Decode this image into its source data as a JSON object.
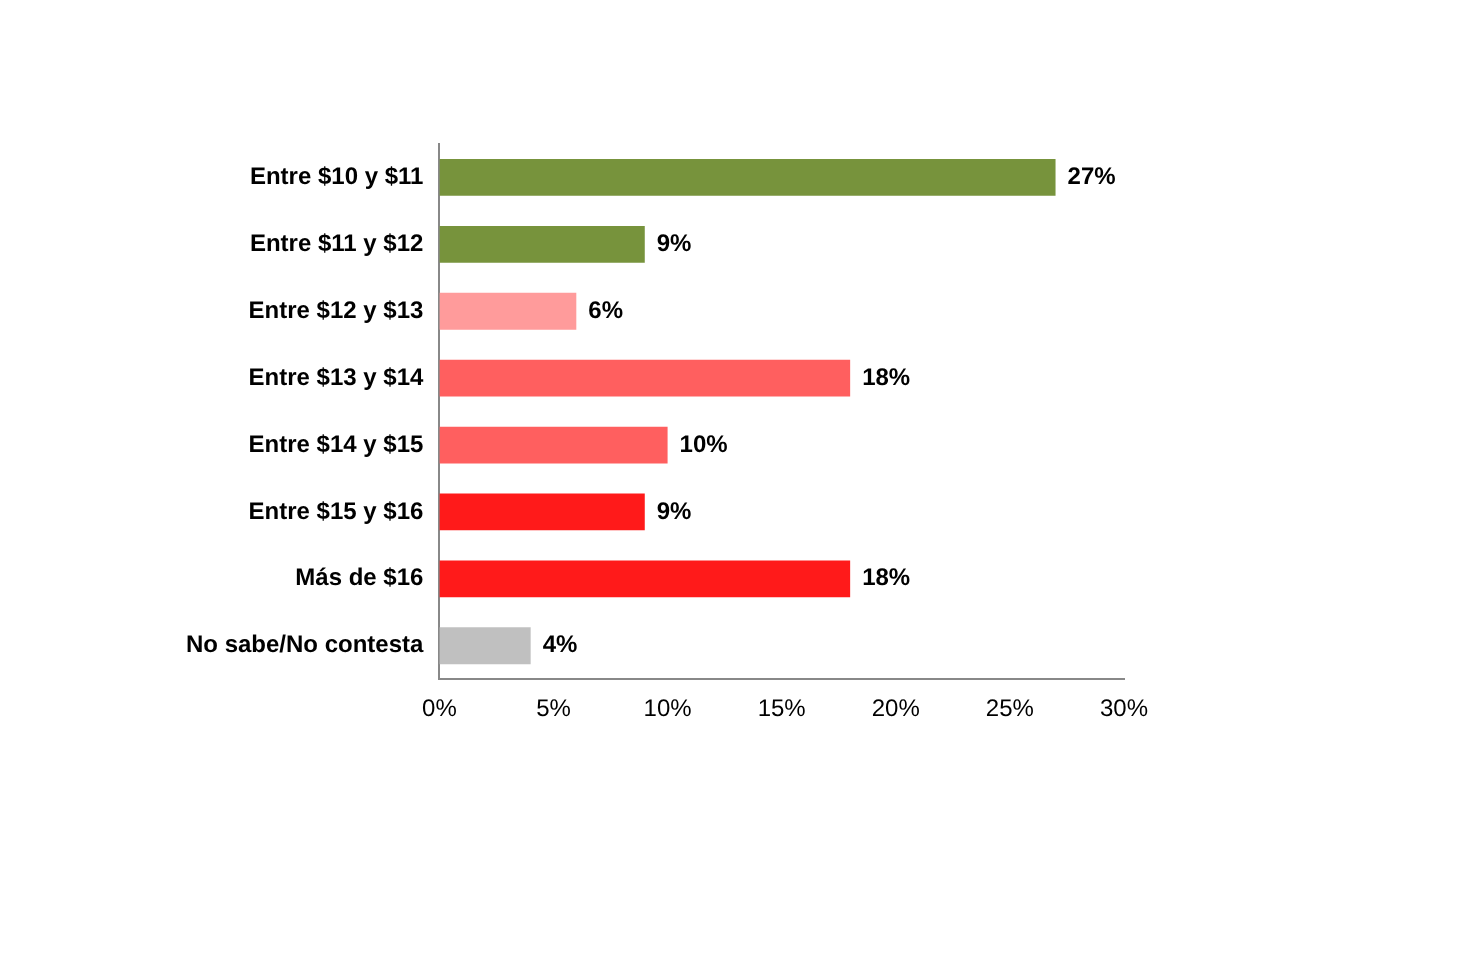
{
  "chart_data": {
    "type": "bar",
    "orientation": "horizontal",
    "categories": [
      "Entre $10 y $11",
      "Entre $11 y $12",
      "Entre $12 y $13",
      "Entre $13 y $14",
      "Entre $14 y $15",
      "Entre $15 y $16",
      "Más de $16",
      "No sabe/No contesta"
    ],
    "values": [
      27,
      9,
      6,
      18,
      10,
      9,
      18,
      4
    ],
    "colors": [
      "#77933c",
      "#77933c",
      "#ff9b9b",
      "#ff5f5f",
      "#ff5f5f",
      "#ff1a1a",
      "#ff1a1a",
      "#c0c0c0"
    ],
    "value_labels": [
      "27%",
      "9%",
      "6%",
      "18%",
      "10%",
      "9%",
      "18%",
      "4%"
    ],
    "xlim": [
      0,
      30
    ],
    "xticks": [
      {
        "value": 0,
        "label": "0%"
      },
      {
        "value": 5,
        "label": "5%"
      },
      {
        "value": 10,
        "label": "10%"
      },
      {
        "value": 15,
        "label": "15%"
      },
      {
        "value": 20,
        "label": "20%"
      },
      {
        "value": 25,
        "label": "25%"
      },
      {
        "value": 30,
        "label": "30%"
      }
    ],
    "grid": false,
    "legend": false
  }
}
